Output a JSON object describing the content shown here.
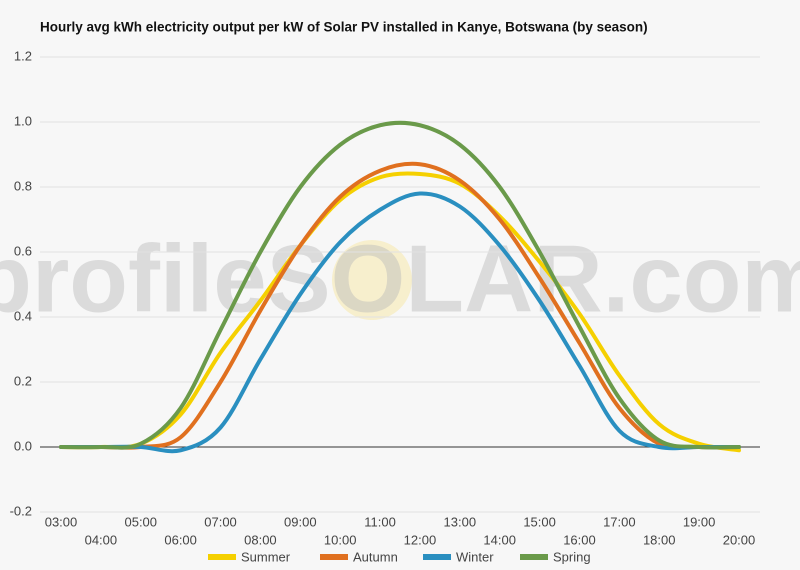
{
  "chart_data": {
    "type": "line",
    "title": "Hourly avg kWh electricity output per kW of Solar PV installed in Kanye, Botswana (by season)",
    "watermark": "profileSOLAR.com",
    "categories": [
      "03:00",
      "04:00",
      "05:00",
      "06:00",
      "07:00",
      "08:00",
      "09:00",
      "10:00",
      "11:00",
      "12:00",
      "13:00",
      "14:00",
      "15:00",
      "16:00",
      "17:00",
      "18:00",
      "19:00",
      "20:00"
    ],
    "series": [
      {
        "name": "Summer",
        "color": "#f5d000",
        "values": [
          0,
          0,
          0.01,
          0.1,
          0.29,
          0.45,
          0.62,
          0.76,
          0.83,
          0.84,
          0.81,
          0.71,
          0.57,
          0.41,
          0.22,
          0.07,
          0.01,
          -0.01
        ]
      },
      {
        "name": "Autumn",
        "color": "#e0701f",
        "values": [
          0,
          0,
          0,
          0.03,
          0.2,
          0.42,
          0.62,
          0.77,
          0.85,
          0.87,
          0.82,
          0.7,
          0.52,
          0.32,
          0.12,
          0.01,
          0,
          0
        ]
      },
      {
        "name": "Winter",
        "color": "#2a8fc0",
        "values": [
          0,
          0,
          0,
          -0.01,
          0.06,
          0.27,
          0.47,
          0.63,
          0.73,
          0.78,
          0.74,
          0.62,
          0.45,
          0.25,
          0.05,
          0,
          0,
          0
        ]
      },
      {
        "name": "Spring",
        "color": "#6a9a4a",
        "values": [
          0,
          0,
          0.01,
          0.12,
          0.36,
          0.6,
          0.8,
          0.93,
          0.99,
          0.99,
          0.93,
          0.8,
          0.6,
          0.37,
          0.15,
          0.02,
          0,
          0
        ]
      }
    ],
    "ylim": [
      -0.2,
      1.2
    ],
    "yticks": [
      -0.2,
      {
        "value": 0,
        "label": "0.0"
      },
      0.2,
      0.4,
      0.6,
      0.8,
      {
        "value": 1,
        "label": "1.0"
      },
      1.2
    ],
    "grid": true,
    "legend": "bottom"
  }
}
